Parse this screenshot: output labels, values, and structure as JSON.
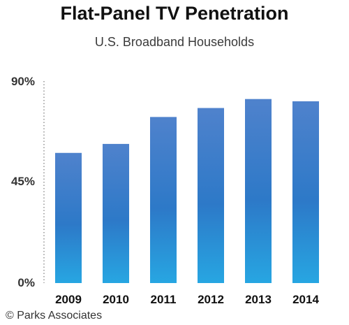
{
  "chart_data": {
    "type": "bar",
    "title": "Flat-Panel TV Penetration",
    "subtitle": "U.S. Broadband Households",
    "categories": [
      "2009",
      "2010",
      "2011",
      "2012",
      "2013",
      "2014"
    ],
    "values": [
      58,
      62,
      74,
      78,
      82,
      81
    ],
    "unit": "%",
    "ylim": [
      0,
      90
    ],
    "yticks": [
      "0%",
      "45%",
      "90%"
    ],
    "grid": false,
    "legend": "none"
  },
  "source": "© Parks Associates",
  "colors": {
    "bar_top": "#4f82cc",
    "bar_mid": "#2d79c8",
    "bar_bottom": "#27a6e2",
    "axis": "#777777"
  }
}
